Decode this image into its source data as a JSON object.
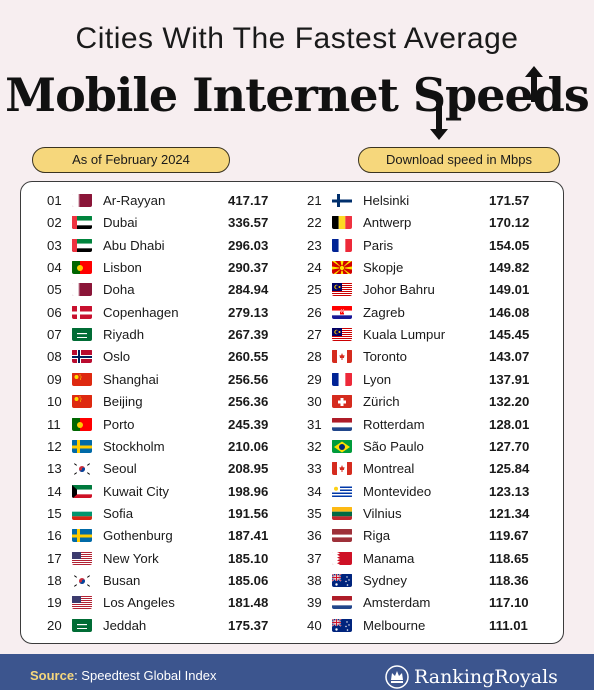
{
  "title": {
    "line1": "Cities With The Fastest Average",
    "line2": "Mobile Internet Speeds"
  },
  "labels": {
    "date": "As of February 2024",
    "unit": "Download speed in Mbps"
  },
  "footer": {
    "source_label": "Source",
    "source_text": ": Speedtest Global Index",
    "brand": "RankingRoyals"
  },
  "chart_data": {
    "type": "table",
    "title": "Cities With The Fastest Average Mobile Internet Speeds",
    "subtitle": "As of February 2024",
    "unit": "Download speed in Mbps",
    "rows": [
      {
        "rank": "01",
        "city": "Ar-Rayyan",
        "speed": "417.17",
        "flag": "qa"
      },
      {
        "rank": "02",
        "city": "Dubai",
        "speed": "336.57",
        "flag": "ae"
      },
      {
        "rank": "03",
        "city": "Abu Dhabi",
        "speed": "296.03",
        "flag": "ae"
      },
      {
        "rank": "04",
        "city": "Lisbon",
        "speed": "290.37",
        "flag": "pt"
      },
      {
        "rank": "05",
        "city": "Doha",
        "speed": "284.94",
        "flag": "qa"
      },
      {
        "rank": "06",
        "city": "Copenhagen",
        "speed": "279.13",
        "flag": "dk"
      },
      {
        "rank": "07",
        "city": "Riyadh",
        "speed": "267.39",
        "flag": "sa"
      },
      {
        "rank": "08",
        "city": "Oslo",
        "speed": "260.55",
        "flag": "no"
      },
      {
        "rank": "09",
        "city": "Shanghai",
        "speed": "256.56",
        "flag": "cn"
      },
      {
        "rank": "10",
        "city": "Beijing",
        "speed": "256.36",
        "flag": "cn"
      },
      {
        "rank": "11",
        "city": "Porto",
        "speed": "245.39",
        "flag": "pt"
      },
      {
        "rank": "12",
        "city": "Stockholm",
        "speed": "210.06",
        "flag": "se"
      },
      {
        "rank": "13",
        "city": "Seoul",
        "speed": "208.95",
        "flag": "kr"
      },
      {
        "rank": "14",
        "city": "Kuwait City",
        "speed": "198.96",
        "flag": "kw"
      },
      {
        "rank": "15",
        "city": "Sofia",
        "speed": "191.56",
        "flag": "bg"
      },
      {
        "rank": "16",
        "city": "Gothenburg",
        "speed": "187.41",
        "flag": "se"
      },
      {
        "rank": "17",
        "city": "New York",
        "speed": "185.10",
        "flag": "us"
      },
      {
        "rank": "18",
        "city": "Busan",
        "speed": "185.06",
        "flag": "kr"
      },
      {
        "rank": "19",
        "city": "Los Angeles",
        "speed": "181.48",
        "flag": "us"
      },
      {
        "rank": "20",
        "city": "Jeddah",
        "speed": "175.37",
        "flag": "sa"
      },
      {
        "rank": "21",
        "city": "Helsinki",
        "speed": "171.57",
        "flag": "fi"
      },
      {
        "rank": "22",
        "city": "Antwerp",
        "speed": "170.12",
        "flag": "be"
      },
      {
        "rank": "23",
        "city": "Paris",
        "speed": "154.05",
        "flag": "fr"
      },
      {
        "rank": "24",
        "city": "Skopje",
        "speed": "149.82",
        "flag": "mk"
      },
      {
        "rank": "25",
        "city": "Johor Bahru",
        "speed": "149.01",
        "flag": "my"
      },
      {
        "rank": "26",
        "city": "Zagreb",
        "speed": "146.08",
        "flag": "hr"
      },
      {
        "rank": "27",
        "city": "Kuala Lumpur",
        "speed": "145.45",
        "flag": "my"
      },
      {
        "rank": "28",
        "city": "Toronto",
        "speed": "143.07",
        "flag": "ca"
      },
      {
        "rank": "29",
        "city": "Lyon",
        "speed": "137.91",
        "flag": "fr"
      },
      {
        "rank": "30",
        "city": "Zürich",
        "speed": "132.20",
        "flag": "ch"
      },
      {
        "rank": "31",
        "city": "Rotterdam",
        "speed": "128.01",
        "flag": "nl"
      },
      {
        "rank": "32",
        "city": "São Paulo",
        "speed": "127.70",
        "flag": "br"
      },
      {
        "rank": "33",
        "city": "Montreal",
        "speed": "125.84",
        "flag": "ca"
      },
      {
        "rank": "34",
        "city": "Montevideo",
        "speed": "123.13",
        "flag": "uy"
      },
      {
        "rank": "35",
        "city": "Vilnius",
        "speed": "121.34",
        "flag": "lt"
      },
      {
        "rank": "36",
        "city": "Riga",
        "speed": "119.67",
        "flag": "lv"
      },
      {
        "rank": "37",
        "city": "Manama",
        "speed": "118.65",
        "flag": "bh"
      },
      {
        "rank": "38",
        "city": "Sydney",
        "speed": "118.36",
        "flag": "au"
      },
      {
        "rank": "39",
        "city": "Amsterdam",
        "speed": "117.10",
        "flag": "nl"
      },
      {
        "rank": "40",
        "city": "Melbourne",
        "speed": "111.01",
        "flag": "au"
      }
    ]
  },
  "colors": {
    "background": "#f7eef0",
    "pill": "#f6d77c",
    "footer": "#3c558e"
  }
}
